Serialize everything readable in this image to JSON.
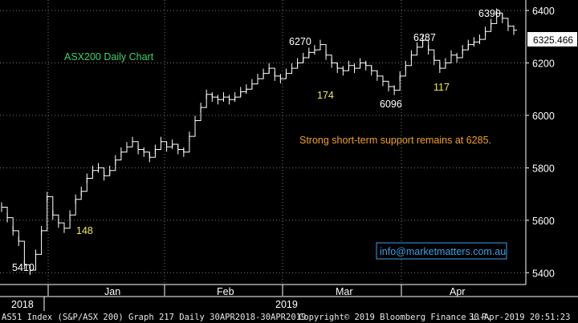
{
  "colors": {
    "background": "#000000",
    "grid": "#7a7a7a",
    "price": "#ffffff",
    "title": "#39d36b",
    "note": "#f0a020",
    "count": "#f2e94e",
    "axis": "#ffffff",
    "current_badge": "#ffffff",
    "info_border": "#3aa0e6",
    "info_text": "#3aa0e6"
  },
  "chart_data": {
    "type": "line",
    "title": "ASX200 Daily Chart",
    "note": "Strong short-term support remains at 6285.",
    "info": "info@marketmatters.com.au",
    "y_ticks": [
      5400,
      5600,
      5800,
      6000,
      6200,
      6400
    ],
    "ylim": [
      5355,
      6440
    ],
    "x_month_labels": [
      "Jan",
      "Feb",
      "Mar",
      "Apr"
    ],
    "x_year_labels": [
      "2018",
      "2019"
    ],
    "current_value": "6325.466",
    "series": [
      {
        "values": [
          5650,
          5610,
          5560,
          5520,
          5430,
          5410,
          5470,
          5560,
          5690,
          5620,
          5590,
          5570,
          5620,
          5680,
          5710,
          5760,
          5790,
          5800,
          5770,
          5790,
          5830,
          5860,
          5880,
          5900,
          5870,
          5860,
          5840,
          5870,
          5900,
          5880,
          5890,
          5870,
          5860,
          5920,
          5980,
          6030,
          6080,
          6070,
          6060,
          6070,
          6060,
          6070,
          6090,
          6100,
          6120,
          6140,
          6160,
          6180,
          6150,
          6140,
          6160,
          6180,
          6200,
          6220,
          6240,
          6250,
          6270,
          6230,
          6200,
          6180,
          6170,
          6190,
          6180,
          6200,
          6190,
          6170,
          6150,
          6130,
          6110,
          6096,
          6150,
          6190,
          6230,
          6260,
          6287,
          6250,
          6210,
          6180,
          6200,
          6230,
          6220,
          6250,
          6270,
          6280,
          6290,
          6320,
          6350,
          6390,
          6370,
          6340,
          6325
        ]
      }
    ],
    "annotations": [
      {
        "text": "5410",
        "value": 5410,
        "kind": "level"
      },
      {
        "text": "148",
        "kind": "count"
      },
      {
        "text": "6270",
        "value": 6270,
        "kind": "level"
      },
      {
        "text": "174",
        "kind": "count"
      },
      {
        "text": "6096",
        "value": 6096,
        "kind": "level"
      },
      {
        "text": "6287",
        "value": 6287,
        "kind": "level"
      },
      {
        "text": "117",
        "kind": "count"
      },
      {
        "text": "6390",
        "value": 6390,
        "kind": "level"
      }
    ]
  },
  "footer": {
    "left": "AS51 Index (S&P/ASX 200) Graph 217  Daily 30APR2018-30APR2019",
    "center": "Copyright© 2019 Bloomberg Finance L.P.",
    "right": "30-Apr-2019 20:51:23"
  }
}
